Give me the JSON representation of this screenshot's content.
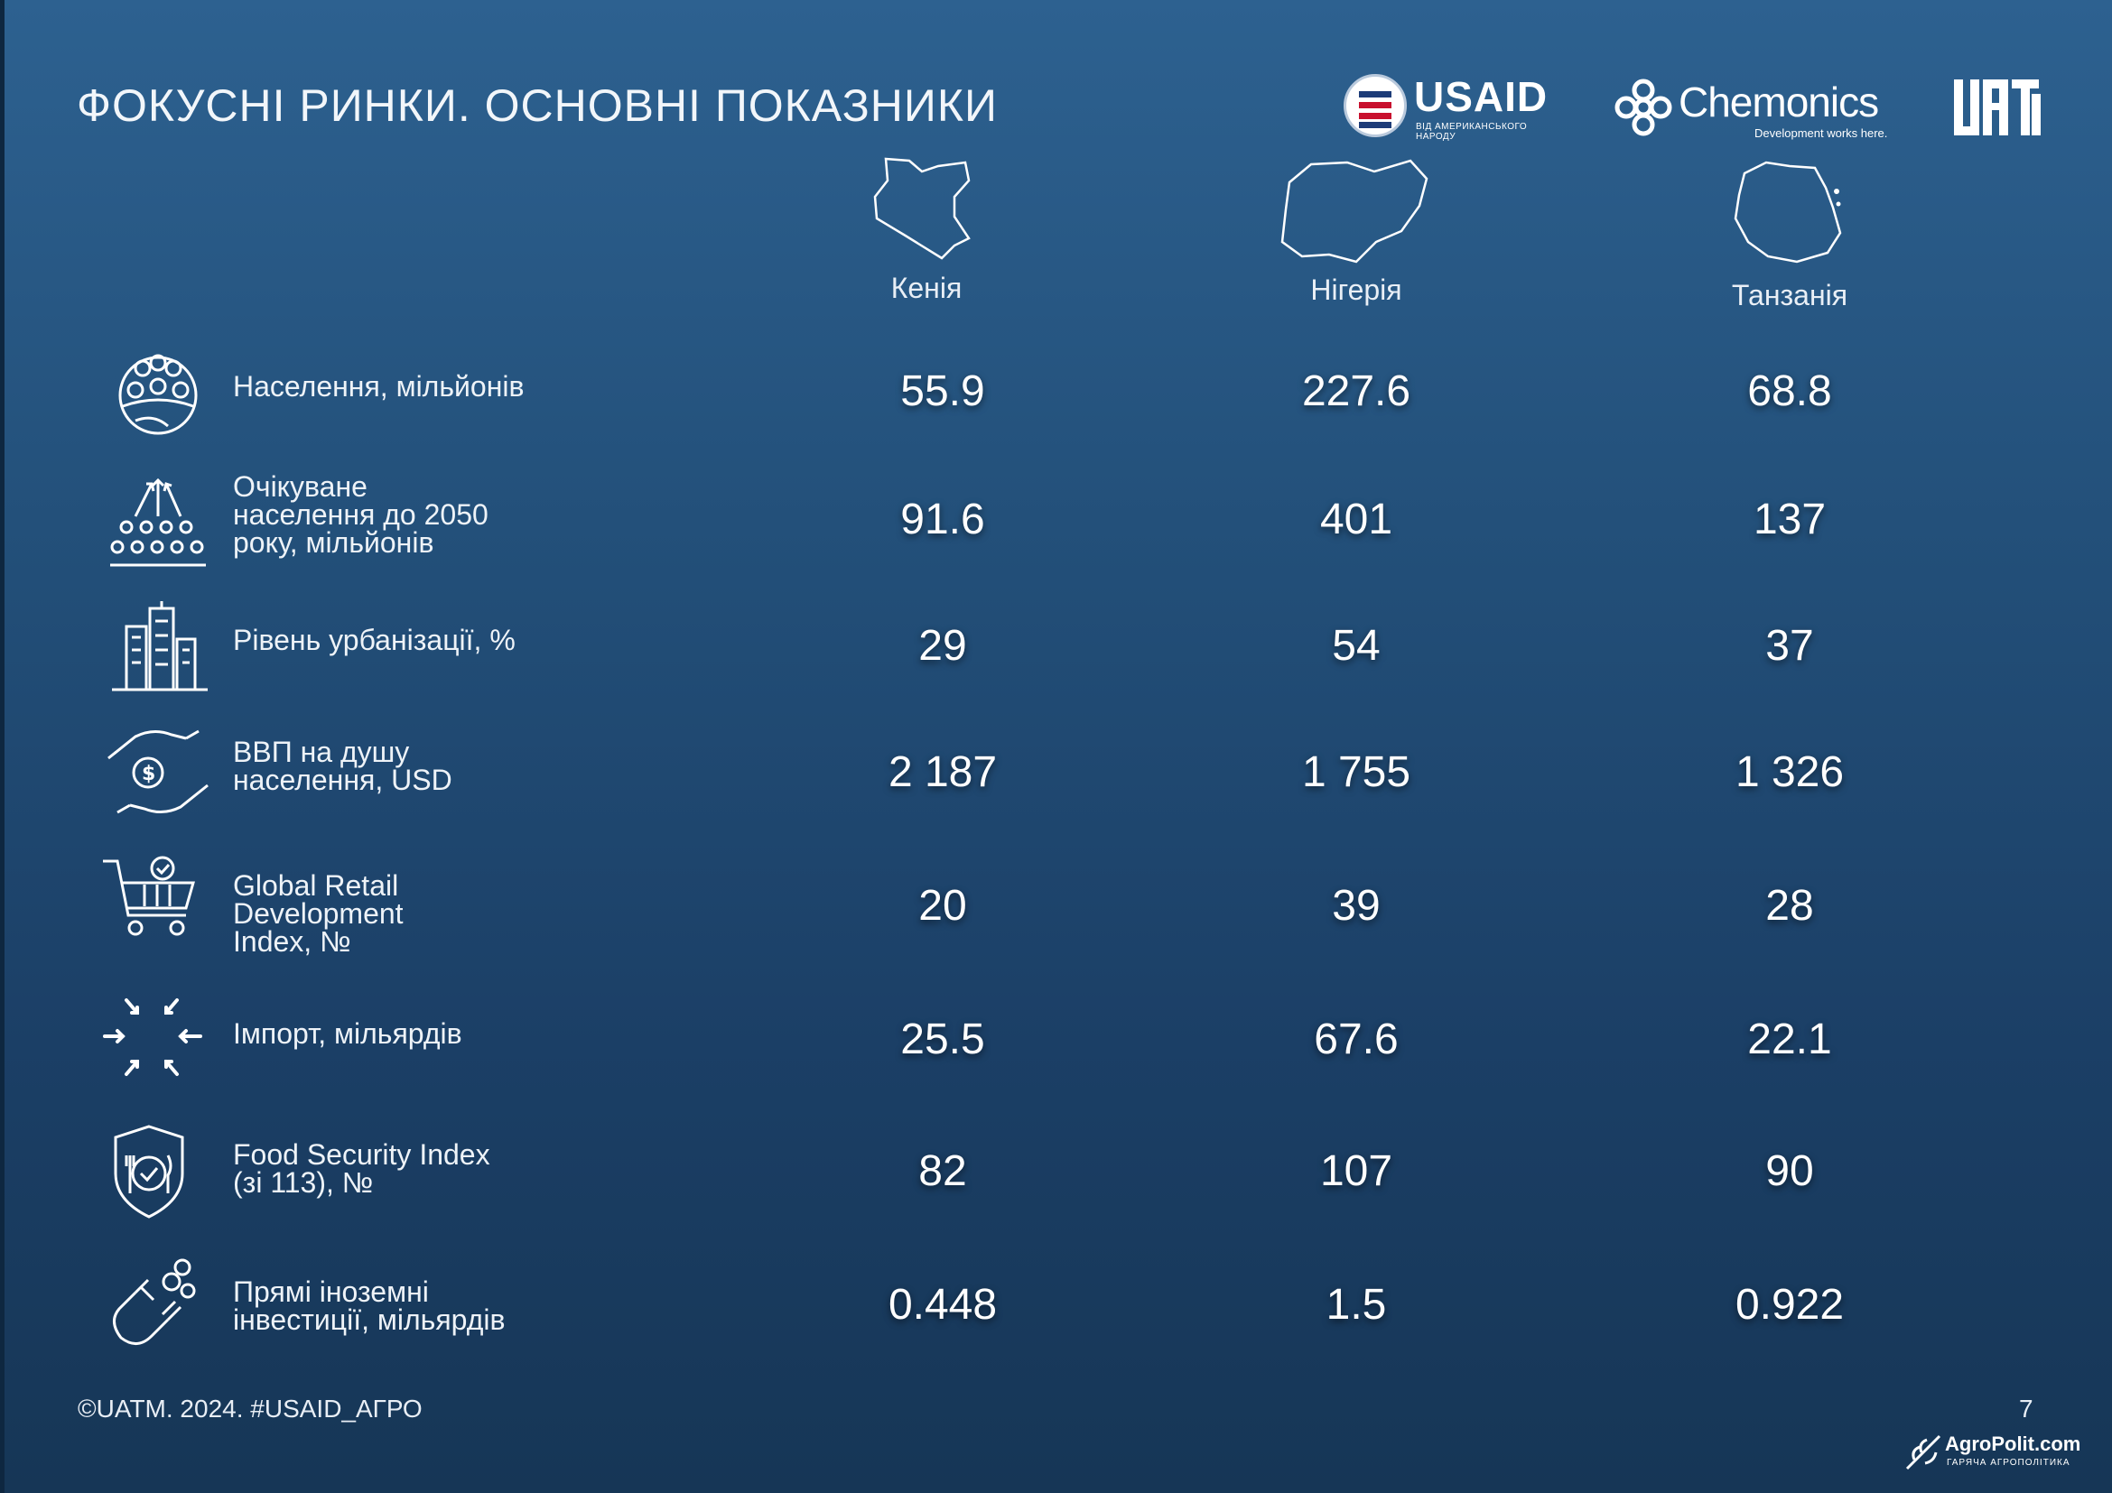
{
  "title": "ФОКУСНІ РИНКИ. ОСНОВНІ ПОКАЗНИКИ",
  "logos": {
    "usaid": "USAID",
    "usaid_sub": "ВІД АМЕРИКАНСЬКОГО НАРОДУ",
    "chemonics": "Chemonics",
    "chemonics_sub": "Development works here.",
    "uatm": "UATM"
  },
  "countries": [
    {
      "name": "Кенія",
      "icon": "kenya-map-icon"
    },
    {
      "name": "Нігерія",
      "icon": "nigeria-map-icon"
    },
    {
      "name": "Танзанія",
      "icon": "tanzania-map-icon"
    }
  ],
  "rows": [
    {
      "label": "Населення, мільйонів",
      "icon": "population-globe-icon",
      "values": [
        "55.9",
        "227.6",
        "68.8"
      ]
    },
    {
      "label": "Очікуване\nнаселення до 2050\nроку, мільйонів",
      "icon": "population-growth-icon",
      "values": [
        "91.6",
        "401",
        "137"
      ]
    },
    {
      "label": "Рівень урбанізації, %",
      "icon": "city-buildings-icon",
      "values": [
        "29",
        "54",
        "37"
      ]
    },
    {
      "label": "ВВП на душу\nнаселення, USD",
      "icon": "money-hands-icon",
      "values": [
        "2 187",
        "1 755",
        "1 326"
      ]
    },
    {
      "label": "Global Retail\nDevelopment\nIndex, №",
      "icon": "shopping-cart-icon",
      "values": [
        "20",
        "39",
        "28"
      ]
    },
    {
      "label": "Імпорт, мільярдів",
      "icon": "import-arrows-icon",
      "values": [
        "25.5",
        "67.6",
        "22.1"
      ]
    },
    {
      "label": "Food Security Index\n(зі 113), №",
      "icon": "food-security-shield-icon",
      "values": [
        "82",
        "107",
        "90"
      ]
    },
    {
      "label": "Прямі іноземні\nінвестиції, мільярдів",
      "icon": "investment-magnet-icon",
      "values": [
        "0.448",
        "1.5",
        "0.922"
      ]
    }
  ],
  "footer": "©UATM. 2024. #USAID_АГРО",
  "page_number": "7",
  "watermark": {
    "name": "AgroPolit.com",
    "sub": "ГАРЯЧА АГРОПОЛІТИКА"
  }
}
